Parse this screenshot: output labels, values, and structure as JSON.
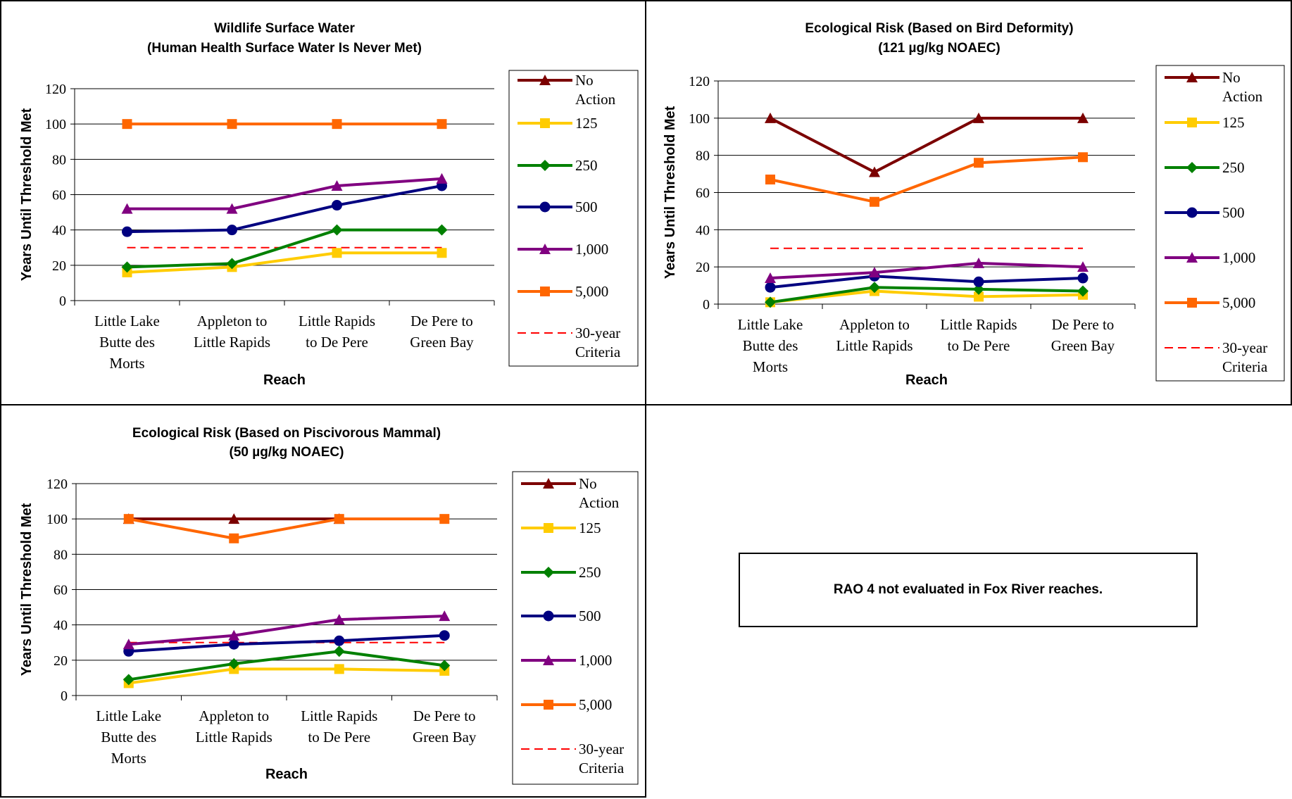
{
  "charts": [
    {
      "id": "panel-1",
      "chart_data": {
        "type": "line",
        "title": [
          "Wildlife Surface Water",
          "(Human Health Surface Water Is Never Met)"
        ],
        "xlabel": "Reach",
        "ylabel": "Years Until Threshold Met",
        "categories": [
          [
            "Little Lake",
            "Butte des",
            "Morts"
          ],
          [
            "Appleton to",
            "Little Rapids"
          ],
          [
            "Little Rapids",
            "to De Pere"
          ],
          [
            "De Pere to",
            "Green Bay"
          ]
        ],
        "ylim": [
          0,
          120
        ],
        "yticks": [
          0,
          20,
          40,
          60,
          80,
          100,
          120
        ],
        "grid": "horizontal",
        "legend_position": "right",
        "series": [
          {
            "name": "No Action",
            "legend": [
              "No",
              "Action"
            ],
            "color": "#7b0000",
            "marker": "triangle",
            "values": [
              null,
              null,
              null,
              null
            ]
          },
          {
            "name": "125",
            "legend": [
              "125"
            ],
            "color": "#ffcc00",
            "marker": "square",
            "values": [
              16,
              19,
              27,
              27
            ]
          },
          {
            "name": "250",
            "legend": [
              "250"
            ],
            "color": "#008000",
            "marker": "diamond",
            "values": [
              19,
              21,
              40,
              40
            ]
          },
          {
            "name": "500",
            "legend": [
              "500"
            ],
            "color": "#000080",
            "marker": "circle",
            "values": [
              39,
              40,
              54,
              65
            ]
          },
          {
            "name": "1,000",
            "legend": [
              "1,000"
            ],
            "color": "#800080",
            "marker": "triangle",
            "values": [
              52,
              52,
              65,
              69
            ]
          },
          {
            "name": "5,000",
            "legend": [
              "5,000"
            ],
            "color": "#ff6600",
            "marker": "square",
            "values": [
              100,
              100,
              100,
              100
            ]
          },
          {
            "name": "30-year Criteria",
            "legend": [
              "30-year",
              "Criteria"
            ],
            "color": "#ff0000",
            "marker": "none",
            "dashed": true,
            "values": [
              30,
              30,
              30,
              30
            ]
          }
        ]
      }
    },
    {
      "id": "panel-2",
      "chart_data": {
        "type": "line",
        "title": [
          "Ecological Risk (Based on Bird Deformity)",
          "(121 µg/kg NOAEC)"
        ],
        "xlabel": "Reach",
        "ylabel": "Years Until Threshold Met",
        "categories": [
          [
            "Little Lake",
            "Butte des",
            "Morts"
          ],
          [
            "Appleton to",
            "Little Rapids"
          ],
          [
            "Little Rapids",
            "to De Pere"
          ],
          [
            "De Pere to",
            "Green Bay"
          ]
        ],
        "ylim": [
          0,
          120
        ],
        "yticks": [
          0,
          20,
          40,
          60,
          80,
          100,
          120
        ],
        "grid": "horizontal",
        "legend_position": "right",
        "series": [
          {
            "name": "No Action",
            "legend": [
              "No",
              "Action"
            ],
            "color": "#7b0000",
            "marker": "triangle",
            "values": [
              100,
              71,
              100,
              100
            ]
          },
          {
            "name": "125",
            "legend": [
              "125"
            ],
            "color": "#ffcc00",
            "marker": "square",
            "values": [
              1,
              7,
              4,
              5
            ]
          },
          {
            "name": "250",
            "legend": [
              "250"
            ],
            "color": "#008000",
            "marker": "diamond",
            "values": [
              1,
              9,
              8,
              7
            ]
          },
          {
            "name": "500",
            "legend": [
              "500"
            ],
            "color": "#000080",
            "marker": "circle",
            "values": [
              9,
              15,
              12,
              14
            ]
          },
          {
            "name": "1,000",
            "legend": [
              "1,000"
            ],
            "color": "#800080",
            "marker": "triangle",
            "values": [
              14,
              17,
              22,
              20
            ]
          },
          {
            "name": "5,000",
            "legend": [
              "5,000"
            ],
            "color": "#ff6600",
            "marker": "square",
            "values": [
              67,
              55,
              76,
              79
            ]
          },
          {
            "name": "30-year Criteria",
            "legend": [
              "30-year",
              "Criteria"
            ],
            "color": "#ff0000",
            "marker": "none",
            "dashed": true,
            "values": [
              30,
              30,
              30,
              30
            ]
          }
        ]
      }
    },
    {
      "id": "panel-3",
      "chart_data": {
        "type": "line",
        "title": [
          "Ecological Risk (Based on Piscivorous Mammal)",
          "(50 µg/kg NOAEC)"
        ],
        "xlabel": "Reach",
        "ylabel": "Years Until Threshold Met",
        "categories": [
          [
            "Little Lake",
            "Butte des",
            "Morts"
          ],
          [
            "Appleton to",
            "Little Rapids"
          ],
          [
            "Little Rapids",
            "to De Pere"
          ],
          [
            "De Pere to",
            "Green Bay"
          ]
        ],
        "ylim": [
          0,
          120
        ],
        "yticks": [
          0,
          20,
          40,
          60,
          80,
          100,
          120
        ],
        "grid": "horizontal",
        "legend_position": "right",
        "series": [
          {
            "name": "No Action",
            "legend": [
              "No",
              "Action"
            ],
            "color": "#7b0000",
            "marker": "triangle",
            "values": [
              100,
              100,
              100,
              null
            ]
          },
          {
            "name": "125",
            "legend": [
              "125"
            ],
            "color": "#ffcc00",
            "marker": "square",
            "values": [
              7,
              15,
              15,
              14
            ]
          },
          {
            "name": "250",
            "legend": [
              "250"
            ],
            "color": "#008000",
            "marker": "diamond",
            "values": [
              9,
              18,
              25,
              17
            ]
          },
          {
            "name": "500",
            "legend": [
              "500"
            ],
            "color": "#000080",
            "marker": "circle",
            "values": [
              25,
              29,
              31,
              34
            ]
          },
          {
            "name": "1,000",
            "legend": [
              "1,000"
            ],
            "color": "#800080",
            "marker": "triangle",
            "values": [
              29,
              34,
              43,
              45
            ]
          },
          {
            "name": "5,000",
            "legend": [
              "5,000"
            ],
            "color": "#ff6600",
            "marker": "square",
            "values": [
              100,
              89,
              100,
              100
            ]
          },
          {
            "name": "30-year Criteria",
            "legend": [
              "30-year",
              "Criteria"
            ],
            "color": "#ff0000",
            "marker": "none",
            "dashed": true,
            "values": [
              30,
              30,
              30,
              30
            ]
          }
        ]
      }
    }
  ],
  "note": "RAO 4 not evaluated in Fox River reaches."
}
